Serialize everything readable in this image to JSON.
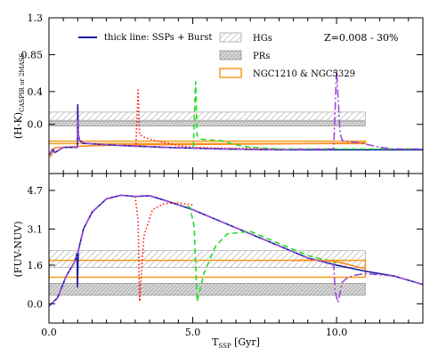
{
  "chart_data": [
    {
      "type": "line",
      "panel": "top",
      "ylabel": "(H-K)",
      "ylabel_sub": "CASPIR or 2MASS",
      "ylim": [
        -0.6,
        1.3
      ],
      "yticks": [
        "1.3",
        "0.85",
        "0.4",
        "0.0"
      ],
      "ytick_values": [
        1.3,
        0.85,
        0.4,
        0.0
      ],
      "xlim": [
        0,
        13
      ],
      "annotation": "Z=0.008 - 30%",
      "legend_placement": "top-left",
      "legend": [
        {
          "label": "thick line: SSPs + Burst",
          "style": "line",
          "color": "#1a1aa0"
        },
        {
          "label": "HGs",
          "style": "hatch-light"
        },
        {
          "label": "PRs",
          "style": "hatch-dark"
        },
        {
          "label": "NGC1210 & NGC5329",
          "style": "box",
          "color": "#f59a1c"
        }
      ],
      "bands": [
        {
          "name": "HGs",
          "x": [
            0,
            11
          ],
          "y": [
            0.05,
            0.15
          ]
        },
        {
          "name": "PRs",
          "x": [
            0,
            11
          ],
          "y": [
            -0.02,
            0.04
          ]
        },
        {
          "name": "NGC1210 & NGC5329",
          "x": [
            0,
            11
          ],
          "y": [
            -0.235,
            -0.205
          ]
        }
      ],
      "series": [
        {
          "color": "#ff8c1a",
          "dash": "solid",
          "x": [
            0.05,
            0.2,
            1.5,
            3,
            5,
            7,
            9,
            11
          ],
          "y": [
            -0.4,
            -0.285,
            -0.26,
            -0.25,
            -0.245,
            -0.24,
            -0.235,
            -0.225
          ]
        },
        {
          "color": "#1a1aa0",
          "dash": "solid",
          "x": [
            0.02,
            0.12,
            0.2,
            0.5,
            0.99,
            1.0,
            1.02,
            1.07,
            1.2,
            2,
            3,
            4,
            5,
            6,
            8,
            10,
            12,
            13
          ],
          "y": [
            -0.37,
            -0.3,
            -0.345,
            -0.28,
            -0.28,
            0.24,
            -0.12,
            -0.2,
            -0.23,
            -0.25,
            -0.265,
            -0.28,
            -0.29,
            -0.3,
            -0.31,
            -0.31,
            -0.31,
            -0.31
          ]
        },
        {
          "color": "#ff1a1a",
          "dash": "dot",
          "x": [
            3.02,
            3.1,
            3.15,
            3.25,
            3.5,
            4,
            4.5,
            5,
            6,
            7,
            8
          ],
          "y": [
            -0.28,
            0.42,
            -0.12,
            -0.15,
            -0.18,
            -0.22,
            -0.26,
            -0.28,
            -0.29,
            -0.295,
            -0.3
          ]
        },
        {
          "color": "#22dd22",
          "dash": "dash",
          "x": [
            5.02,
            5.1,
            5.15,
            5.3,
            5.6,
            6,
            6.5,
            7,
            8,
            9,
            10,
            11,
            12,
            13
          ],
          "y": [
            -0.28,
            0.52,
            -0.14,
            -0.18,
            -0.19,
            -0.2,
            -0.25,
            -0.28,
            -0.3,
            -0.3,
            -0.3,
            -0.3,
            -0.3,
            -0.3
          ]
        },
        {
          "color": "#9a4ad8",
          "dash": "dashdot",
          "x": [
            0.02,
            0.12,
            0.2,
            0.5,
            0.99,
            1.0,
            1.02,
            1.07,
            1.3,
            2,
            3,
            4,
            5,
            6,
            8,
            9.9,
            10.0,
            10.12,
            10.2,
            10.4,
            10.7,
            11,
            11.5,
            12,
            13
          ],
          "y": [
            -0.38,
            -0.3,
            -0.345,
            -0.28,
            -0.28,
            0.05,
            -0.12,
            -0.22,
            -0.23,
            -0.25,
            -0.265,
            -0.28,
            -0.29,
            -0.3,
            -0.31,
            -0.3,
            0.67,
            -0.1,
            -0.2,
            -0.21,
            -0.22,
            -0.24,
            -0.28,
            -0.3,
            -0.3
          ]
        }
      ]
    },
    {
      "type": "line",
      "panel": "bottom",
      "ylabel": "(FUV-NUV)",
      "ylim": [
        -0.8,
        5.4
      ],
      "yticks": [
        "4.7",
        "3.1",
        "1.6",
        "0.0"
      ],
      "ytick_values": [
        4.7,
        3.1,
        1.6,
        0.0
      ],
      "xlim": [
        0,
        13
      ],
      "xticks": [
        "0.0",
        "5.0",
        "10.0"
      ],
      "xtick_values": [
        0,
        5,
        10
      ],
      "xlabel": "T",
      "xlabel_sub": "SSP",
      "xlabel_unit": "[Gyr]",
      "bands": [
        {
          "name": "HGs",
          "x": [
            0,
            11
          ],
          "y": [
            1.5,
            2.2
          ]
        },
        {
          "name": "PRs",
          "x": [
            0,
            11
          ],
          "y": [
            0.35,
            0.85
          ]
        },
        {
          "name": "NGC1210 & NGC5329",
          "x": [
            0,
            11
          ],
          "y": [
            1.1,
            1.8
          ]
        }
      ],
      "series": [
        {
          "color": "#1a1aa0",
          "dash": "solid",
          "x": [
            0.0,
            0.3,
            0.6,
            0.9,
            0.98,
            0.99,
            1.0,
            1.02,
            1.2,
            1.5,
            2.0,
            2.5,
            3.0,
            3.5,
            4.0,
            5.0,
            6.0,
            7.0,
            8.0,
            9.0,
            10.0,
            11.0,
            12.0,
            13.0
          ],
          "y": [
            -0.1,
            0.25,
            1.15,
            1.75,
            2.1,
            0.7,
            1.2,
            2.2,
            3.1,
            3.8,
            4.35,
            4.5,
            4.45,
            4.48,
            4.3,
            3.9,
            3.4,
            2.9,
            2.4,
            1.9,
            1.6,
            1.35,
            1.15,
            0.8
          ]
        },
        {
          "color": "#ff1a1a",
          "dash": "dot",
          "x": [
            3.0,
            3.1,
            3.15,
            3.3,
            3.6,
            4.0,
            4.4,
            5.0
          ],
          "y": [
            4.45,
            3.4,
            0.1,
            2.8,
            3.9,
            4.15,
            4.2,
            4.1
          ]
        },
        {
          "color": "#22dd22",
          "dash": "dash",
          "x": [
            4.5,
            4.9,
            5.05,
            5.15,
            5.4,
            5.8,
            6.2,
            7.0,
            8.0,
            9.0,
            10.0
          ],
          "y": [
            4.1,
            4.0,
            3.2,
            0.1,
            1.3,
            2.4,
            2.9,
            3.0,
            2.5,
            2.0,
            1.7
          ]
        },
        {
          "color": "#ff8c1a",
          "dash": "solid",
          "x": [
            8.5,
            9.0,
            9.5,
            10.0,
            10.5,
            11.0
          ],
          "y": [
            1.8,
            1.8,
            1.8,
            1.75,
            1.6,
            1.45
          ]
        },
        {
          "color": "#9a4ad8",
          "dash": "dashdot",
          "x": [
            0.0,
            0.3,
            0.6,
            0.9,
            1.0,
            1.2,
            1.5,
            2.0,
            2.5,
            3.0,
            3.5,
            4.0,
            5.0,
            6.0,
            7.0,
            8.0,
            9.0,
            9.9,
            9.95,
            10.05,
            10.2,
            10.4,
            10.7,
            11.0,
            12.0,
            13.0
          ],
          "y": [
            -0.1,
            0.25,
            1.15,
            1.75,
            2.05,
            3.1,
            3.8,
            4.35,
            4.5,
            4.45,
            4.48,
            4.3,
            3.9,
            3.4,
            2.9,
            2.4,
            1.9,
            1.65,
            0.5,
            0.05,
            0.9,
            1.1,
            1.2,
            1.25,
            1.15,
            0.8
          ]
        }
      ]
    }
  ]
}
